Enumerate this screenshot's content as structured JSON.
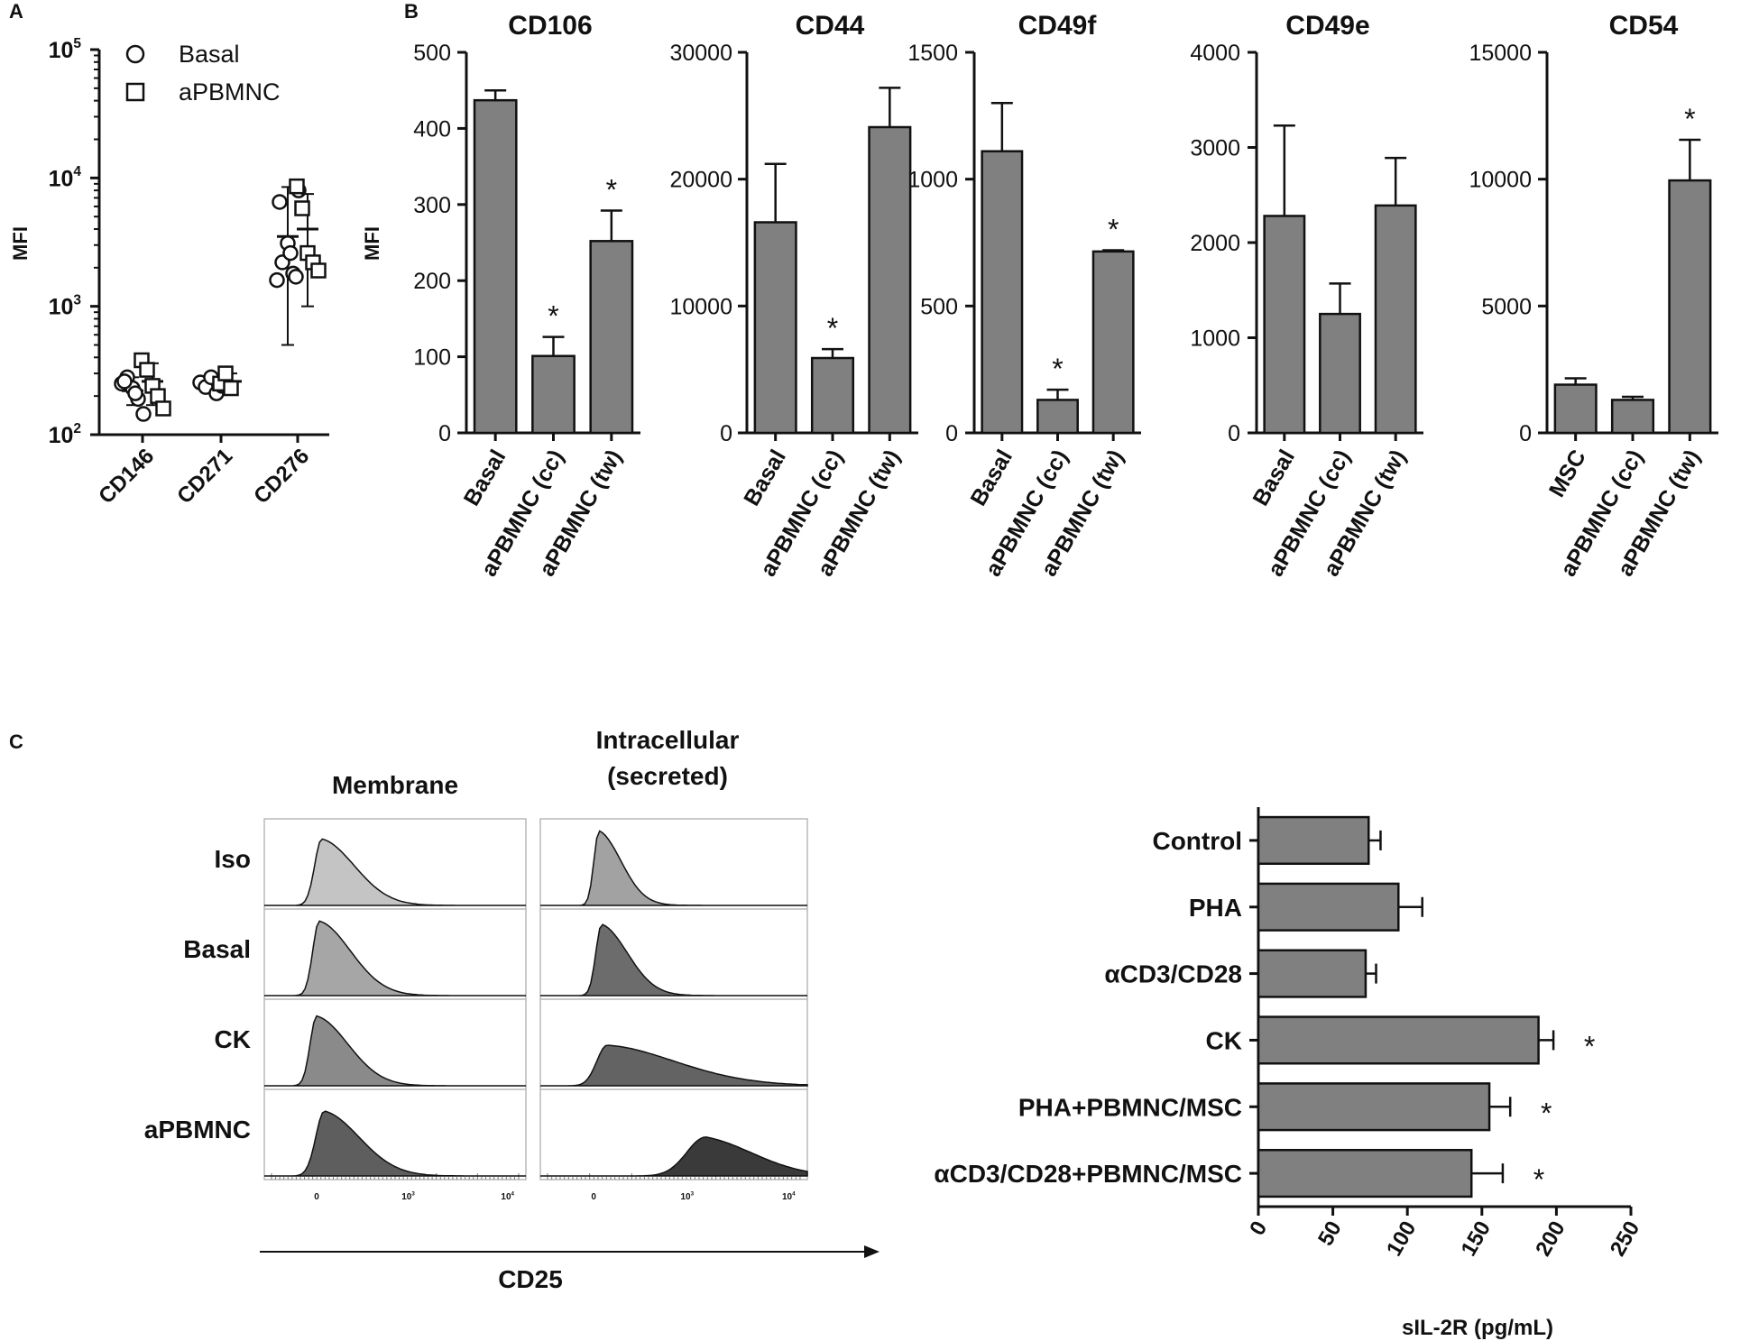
{
  "colors": {
    "bar": "#808080",
    "ink": "#111111",
    "frame": "#b8b8b8"
  },
  "chart_data": [
    {
      "id": "A",
      "panel_label": "A",
      "type": "scatter",
      "title": "",
      "xlabel": "",
      "ylabel": "MFI",
      "yscale": "log",
      "ylim": [
        100,
        100000
      ],
      "y_ticks": [
        {
          "value": 100,
          "base": "10",
          "exp": "2"
        },
        {
          "value": 1000,
          "base": "10",
          "exp": "3"
        },
        {
          "value": 10000,
          "base": "10",
          "exp": "4"
        },
        {
          "value": 100000,
          "base": "10",
          "exp": "5"
        }
      ],
      "categories": [
        "CD146",
        "CD271",
        "CD276"
      ],
      "legend": [
        {
          "name": "Basal",
          "marker": "circle"
        },
        {
          "name": "aPBMNC",
          "marker": "square"
        }
      ],
      "series": [
        {
          "name": "Basal",
          "marker": "circle",
          "points": [
            [
              250,
              280,
              230,
              190,
              145,
              260,
              210
            ],
            [
              255,
              235,
              280,
              210,
              240
            ],
            [
              1600,
              2200,
              3100,
              1800,
              8000,
              6500,
              2600,
              1700
            ]
          ],
          "mean": [
            220,
            240,
            3500
          ],
          "sd_low": [
            170,
            210,
            500
          ],
          "sd_high": [
            280,
            270,
            8500
          ]
        },
        {
          "name": "aPBMNC",
          "marker": "square",
          "points": [
            [
              380,
              320,
              240,
              200,
              160
            ],
            [
              250,
              300,
              230
            ],
            [
              8600,
              5800,
              2600,
              2200,
              1900
            ]
          ],
          "mean": [
            260,
            260,
            4000
          ],
          "sd_low": [
            170,
            230,
            1000
          ],
          "sd_high": [
            360,
            300,
            7500
          ]
        }
      ]
    },
    {
      "id": "B1",
      "panel_label": "B",
      "type": "bar",
      "title": "CD106",
      "ylabel": "MFI",
      "ylim": [
        0,
        500
      ],
      "y_ticks": [
        "0",
        "100",
        "200",
        "300",
        "400",
        "500"
      ],
      "categories": [
        "Basal",
        "aPBMNC (cc)",
        "aPBMNC (tw)"
      ],
      "values": [
        437,
        101,
        252
      ],
      "errors": [
        13,
        25,
        40
      ],
      "significant": [
        false,
        true,
        true
      ]
    },
    {
      "id": "B2",
      "panel_label": "",
      "type": "bar",
      "title": "CD44",
      "ylabel": "",
      "ylim": [
        0,
        30000
      ],
      "y_ticks": [
        "0",
        "10000",
        "20000",
        "30000"
      ],
      "categories": [
        "Basal",
        "aPBMNC (cc)",
        "aPBMNC (tw)"
      ],
      "values": [
        16600,
        5900,
        24100
      ],
      "errors": [
        4600,
        700,
        3100
      ],
      "significant": [
        false,
        true,
        false
      ]
    },
    {
      "id": "B3",
      "panel_label": "",
      "type": "bar",
      "title": "CD49f",
      "ylabel": "",
      "ylim": [
        0,
        1500
      ],
      "y_ticks": [
        "0",
        "500",
        "1000",
        "1500"
      ],
      "categories": [
        "Basal",
        "aPBMNC (cc)",
        "aPBMNC (tw)"
      ],
      "values": [
        1110,
        130,
        715
      ],
      "errors": [
        190,
        40,
        5
      ],
      "significant": [
        false,
        true,
        true
      ]
    },
    {
      "id": "B4",
      "panel_label": "",
      "type": "bar",
      "title": "CD49e",
      "ylabel": "",
      "ylim": [
        0,
        4000
      ],
      "y_ticks": [
        "0",
        "1000",
        "2000",
        "3000",
        "4000"
      ],
      "categories": [
        "Basal",
        "aPBMNC (cc)",
        "aPBMNC (tw)"
      ],
      "values": [
        2280,
        1250,
        2390
      ],
      "errors": [
        950,
        320,
        500
      ],
      "significant": [
        false,
        false,
        false
      ]
    },
    {
      "id": "B5",
      "panel_label": "",
      "type": "bar",
      "title": "CD54",
      "ylabel": "",
      "ylim": [
        0,
        15000
      ],
      "y_ticks": [
        "0",
        "5000",
        "10000",
        "15000"
      ],
      "categories": [
        "MSC",
        "aPBMNC (cc)",
        "aPBMNC (tw)"
      ],
      "values": [
        1900,
        1300,
        9950
      ],
      "errors": [
        250,
        120,
        1600
      ],
      "significant": [
        false,
        false,
        true
      ]
    },
    {
      "id": "C-hist",
      "panel_label": "C",
      "type": "histogram",
      "columns": [
        "Membrane",
        "Intracellular\n(secreted)"
      ],
      "rows": [
        "Iso",
        "Basal",
        "CK",
        "aPBMNC"
      ],
      "xlabel": "CD25",
      "x_ticks": [
        {
          "value": 0,
          "base": "0",
          "exp": ""
        },
        {
          "value": 1000,
          "base": "10",
          "exp": "3"
        },
        {
          "value": 10000,
          "base": "10",
          "exp": "4"
        }
      ],
      "curves": [
        [
          {
            "peak": 0.22,
            "width": 0.05,
            "tail": 0.16,
            "height": 0.82,
            "shade": "#c4c4c4"
          },
          {
            "peak": 0.22,
            "width": 0.035,
            "tail": 0.1,
            "height": 0.92,
            "shade": "#a2a2a2"
          }
        ],
        [
          {
            "peak": 0.21,
            "width": 0.045,
            "tail": 0.16,
            "height": 0.92,
            "shade": "#a6a6a6"
          },
          {
            "peak": 0.23,
            "width": 0.04,
            "tail": 0.12,
            "height": 0.88,
            "shade": "#6c6c6c"
          }
        ],
        [
          {
            "peak": 0.2,
            "width": 0.045,
            "tail": 0.16,
            "height": 0.86,
            "shade": "#8a8a8a"
          },
          {
            "peak": 0.25,
            "width": 0.07,
            "tail": 0.42,
            "height": 0.5,
            "shade": "#636363"
          }
        ],
        [
          {
            "peak": 0.23,
            "width": 0.06,
            "tail": 0.16,
            "height": 0.8,
            "shade": "#5e5e5e"
          },
          {
            "peak": 0.62,
            "width": 0.13,
            "tail": 0.12,
            "height": 0.48,
            "shade": "#3a3a3a"
          }
        ]
      ]
    },
    {
      "id": "C-bar",
      "panel_label": "",
      "type": "bar",
      "orientation": "horizontal",
      "title": "",
      "xlabel": "sIL-2R (pg/mL)",
      "ylabel": "",
      "xlim": [
        0,
        250
      ],
      "x_ticks": [
        "0",
        "50",
        "100",
        "150",
        "200",
        "250"
      ],
      "categories": [
        "Control",
        "PHA",
        "αCD3/CD28",
        "CK",
        "PHA+PBMNC/MSC",
        "αCD3/CD28+PBMNC/MSC"
      ],
      "values": [
        74,
        94,
        72,
        188,
        155,
        143
      ],
      "errors": [
        8,
        16,
        7,
        10,
        14,
        21
      ],
      "significant": [
        false,
        false,
        false,
        true,
        true,
        true
      ]
    }
  ]
}
